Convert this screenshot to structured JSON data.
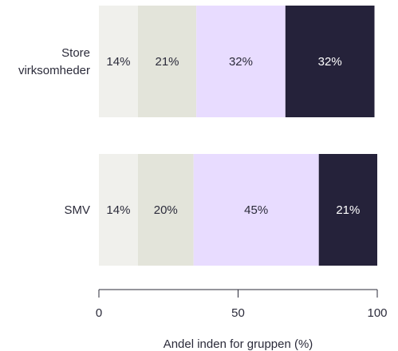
{
  "chart_data": {
    "type": "bar",
    "orientation": "horizontal",
    "stacked": true,
    "categories": [
      "Store virksomheder",
      "SMV"
    ],
    "category_lines": [
      [
        "Store",
        "virksomheder"
      ],
      [
        "SMV"
      ]
    ],
    "series": [
      {
        "values": [
          14,
          14
        ],
        "color": "#f0f0ec",
        "label_color": "#2b2b3a"
      },
      {
        "values": [
          21,
          20
        ],
        "color": "#e3e4da",
        "label_color": "#2b2b3a"
      },
      {
        "values": [
          32,
          45
        ],
        "color": "#e8dcff",
        "label_color": "#2b2b3a"
      },
      {
        "values": [
          32,
          21
        ],
        "color": "#25223a",
        "label_color": "#ffffff"
      }
    ],
    "data_labels": [
      [
        "14%",
        "21%",
        "32%",
        "32%"
      ],
      [
        "14%",
        "20%",
        "45%",
        "21%"
      ]
    ],
    "xlim": [
      0,
      100
    ],
    "xticks": [
      "0",
      "50",
      "100"
    ],
    "xlabel": "Andel inden for gruppen (%)",
    "title": "",
    "grid": false,
    "legend": "none",
    "axis_color": "#2b2b3a"
  }
}
